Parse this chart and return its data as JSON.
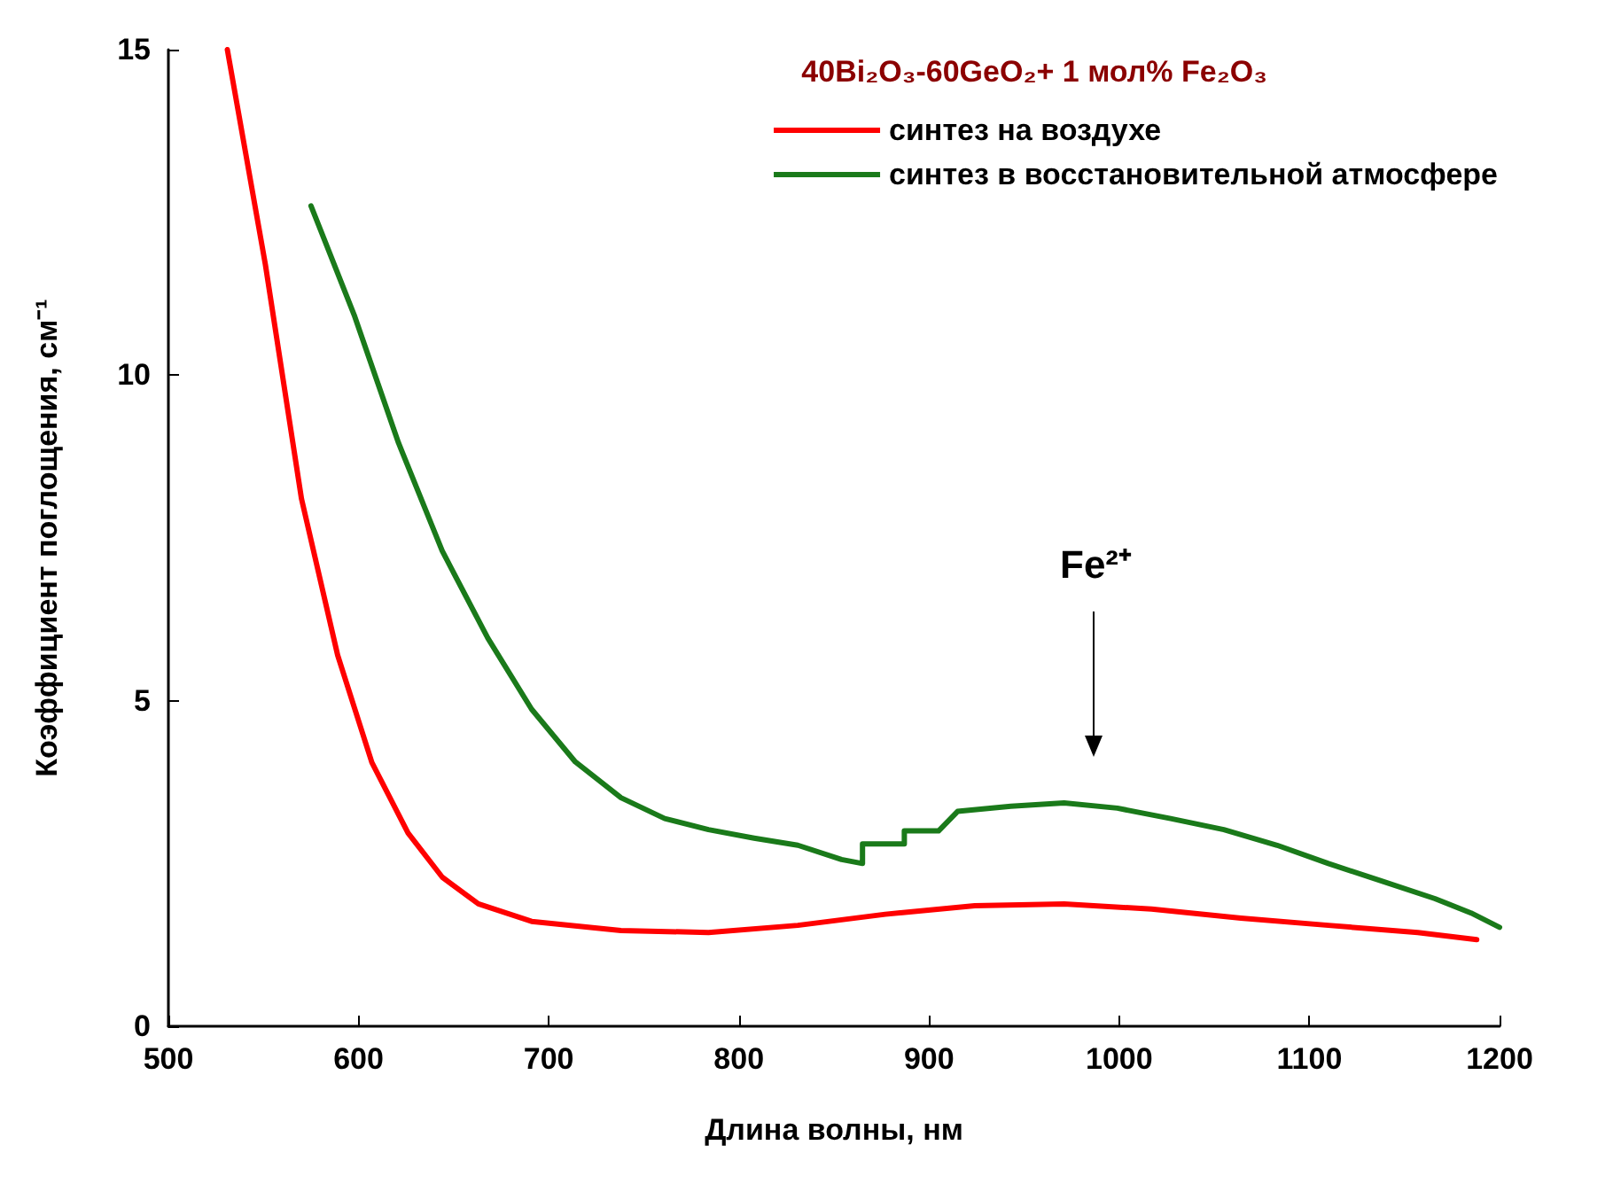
{
  "chart_data": {
    "type": "line",
    "xlabel": "Длина волны, нм",
    "ylabel": "Коэффициент поглощения, см⁻¹",
    "legend_title": "40Bi₂O₃-60GeO₂+ 1 мол% Fe₂O₃",
    "legend": "top right",
    "grid": false,
    "marker": "none",
    "line_style": "solid",
    "xlim": [
      500,
      1200
    ],
    "xticks": [
      500,
      600,
      700,
      800,
      900,
      1000,
      1100,
      1200
    ],
    "ylim": [
      0,
      15
    ],
    "yticks": [
      0,
      5,
      10,
      15
    ],
    "annotations": [
      "Fe²⁺"
    ],
    "series": [
      {
        "name": "синтез на воздухе",
        "color": "#ff0000",
        "x": [
          531,
          551,
          570,
          589,
          607,
          626,
          644,
          663,
          691,
          738,
          784,
          831,
          877,
          924,
          971,
          1017,
          1064,
          1110,
          1157,
          1188
        ],
        "values": [
          15,
          11.7,
          8.1,
          5.7,
          4.05,
          2.97,
          2.29,
          1.88,
          1.61,
          1.47,
          1.44,
          1.55,
          1.72,
          1.85,
          1.88,
          1.8,
          1.66,
          1.55,
          1.44,
          1.33
        ]
      },
      {
        "name": "синтез в восстановительной атмосфере",
        "color": "#1a7a1a",
        "x": [
          575,
          598,
          621,
          644,
          668,
          691,
          714,
          738,
          761,
          784,
          808,
          831,
          854,
          865,
          865,
          887,
          887,
          905,
          915,
          943,
          971,
          999,
          1027,
          1055,
          1083,
          1110,
          1138,
          1166,
          1185,
          1200
        ],
        "values": [
          12.6,
          10.9,
          8.96,
          7.3,
          5.96,
          4.87,
          4.06,
          3.51,
          3.19,
          3.02,
          2.89,
          2.78,
          2.56,
          2.5,
          2.8,
          2.8,
          3.0,
          3.0,
          3.3,
          3.38,
          3.43,
          3.35,
          3.19,
          3.02,
          2.78,
          2.5,
          2.23,
          1.96,
          1.74,
          1.52
        ]
      }
    ]
  }
}
